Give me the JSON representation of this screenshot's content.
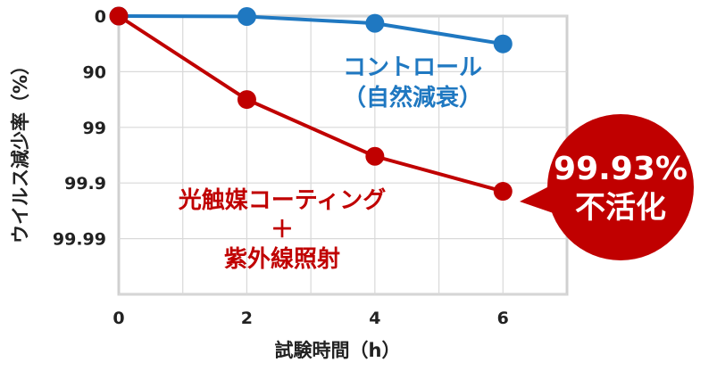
{
  "chart_data": {
    "type": "line",
    "xlabel": "試験時間（h）",
    "ylabel": "ウイルス減少率（%）",
    "x": [
      0,
      2,
      4,
      6
    ],
    "x_ticks": [
      "0",
      "2",
      "4",
      "6"
    ],
    "xlim": [
      0,
      7
    ],
    "y_scale": "log-reduction",
    "y_ticks": [
      "0",
      "90",
      "99",
      "99.9",
      "99.99"
    ],
    "ylim_log_reduction": [
      0,
      5
    ],
    "grid": true,
    "series": [
      {
        "name": "コントロール（自然減衰）",
        "color": "#1f78c1",
        "values": [
          0,
          2,
          26,
          68
        ],
        "log_reduction": [
          0,
          0.008,
          0.13,
          0.5
        ]
      },
      {
        "name": "光触媒コーティング＋紫外線照射",
        "color": "#c00000",
        "values": [
          0,
          96.8,
          99.7,
          99.93
        ],
        "log_reduction": [
          0,
          1.5,
          2.52,
          3.15
        ]
      }
    ],
    "annotations": {
      "control_line1": "コントロール",
      "control_line2": "（自然減衰）",
      "treated_line1": "光触媒コーティング",
      "treated_line2": "＋",
      "treated_line3": "紫外線照射",
      "callout_value": "99.93%",
      "callout_label": "不活化"
    }
  }
}
